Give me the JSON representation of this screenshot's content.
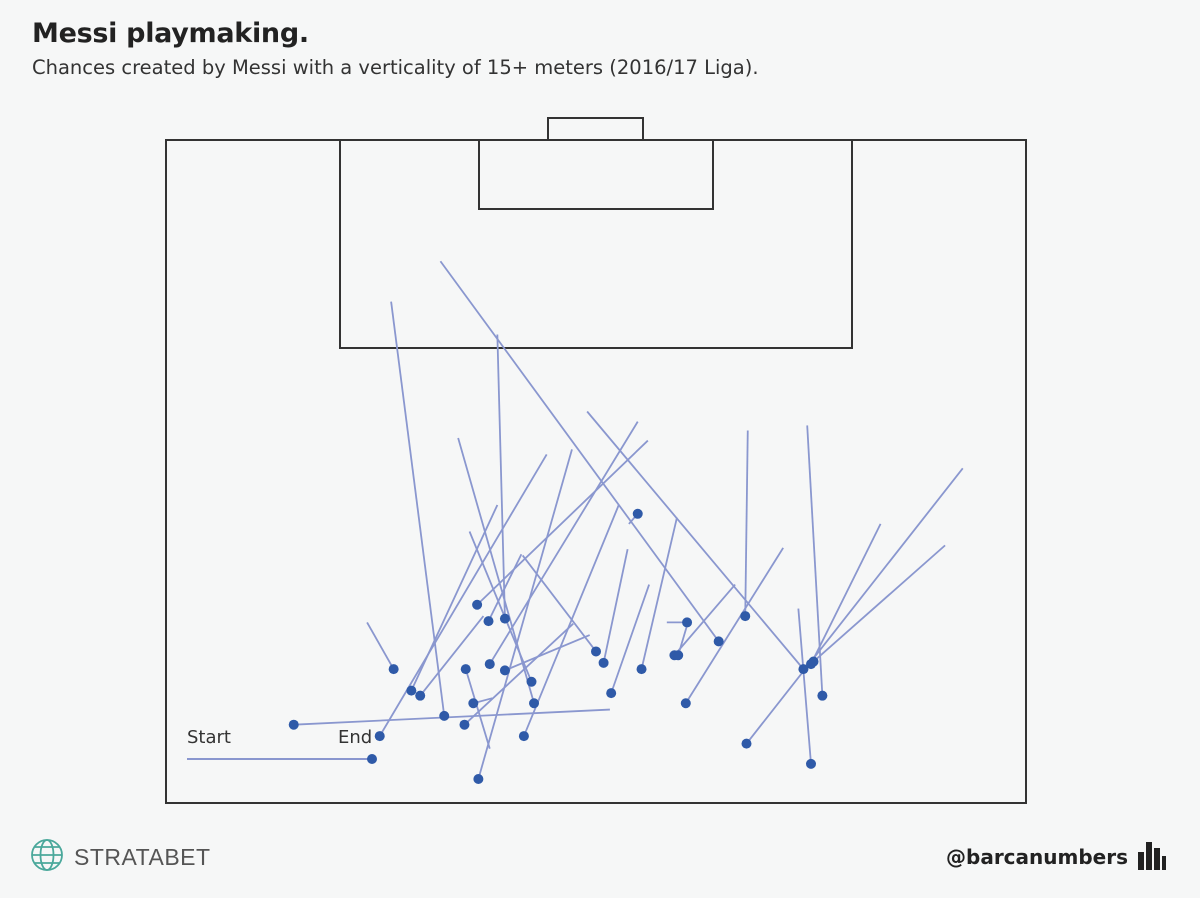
{
  "title": "Messi playmaking.",
  "subtitle": "Chances created by Messi with a verticality of 15+ meters (2016/17 Liga).",
  "legend": {
    "start_label": "Start",
    "end_label": "End"
  },
  "branding": {
    "logo_text": "STRATABET",
    "logo_icon": "globe-icon",
    "handle": "@barcanumbers",
    "handle_icon": "bar-chart-icon"
  },
  "colors": {
    "pass_line": "#8a97cf",
    "pass_end": "#2f5aa8",
    "pitch_line": "#333333",
    "logo": "#4aa89b"
  },
  "chart_data": {
    "type": "pass_map",
    "units": "meters",
    "pitch": {
      "width_m": 68,
      "visible_length_m": 52.5,
      "attacking_direction": "up"
    },
    "passes": [
      {
        "start": [
          32.1,
          24.5
        ],
        "end": [
          24.7,
          50.6
        ]
      },
      {
        "start": [
          26.2,
          28.9
        ],
        "end": [
          19.4,
          43.6
        ]
      },
      {
        "start": [
          35.1,
          45.1
        ],
        "end": [
          10.1,
          46.3
        ]
      },
      {
        "start": [
          30.1,
          24.9
        ],
        "end": [
          16.9,
          47.2
        ]
      },
      {
        "start": [
          15.9,
          38.2
        ],
        "end": [
          18.0,
          41.9
        ]
      },
      {
        "start": [
          36.6,
          30.4
        ],
        "end": [
          37.3,
          29.6
        ]
      },
      {
        "start": [
          28.1,
          32.8
        ],
        "end": [
          25.5,
          38.1
        ]
      },
      {
        "start": [
          25.8,
          44.2
        ],
        "end": [
          24.3,
          44.6
        ]
      },
      {
        "start": [
          28.2,
          32.9
        ],
        "end": [
          34.0,
          40.5
        ]
      },
      {
        "start": [
          37.3,
          22.3
        ],
        "end": [
          25.6,
          41.5
        ]
      },
      {
        "start": [
          35.8,
          28.9
        ],
        "end": [
          28.3,
          47.2
        ]
      },
      {
        "start": [
          17.8,
          12.8
        ],
        "end": [
          22.0,
          45.6
        ]
      },
      {
        "start": [
          32.2,
          38.3
        ],
        "end": [
          23.6,
          46.3
        ]
      },
      {
        "start": [
          36.5,
          32.4
        ],
        "end": [
          34.6,
          41.4
        ]
      },
      {
        "start": [
          48.8,
          32.3
        ],
        "end": [
          41.1,
          44.6
        ]
      },
      {
        "start": [
          63.0,
          26.0
        ],
        "end": [
          45.9,
          47.8
        ]
      },
      {
        "start": [
          21.7,
          9.6
        ],
        "end": [
          43.7,
          39.7
        ]
      },
      {
        "start": [
          26.2,
          15.4
        ],
        "end": [
          26.8,
          37.9
        ]
      },
      {
        "start": [
          46.0,
          23.0
        ],
        "end": [
          45.8,
          37.7
        ]
      },
      {
        "start": [
          24.0,
          31.0
        ],
        "end": [
          28.9,
          42.9
        ]
      },
      {
        "start": [
          33.3,
          21.5
        ],
        "end": [
          50.4,
          41.9
        ]
      },
      {
        "start": [
          38.1,
          23.8
        ],
        "end": [
          24.6,
          36.8
        ]
      },
      {
        "start": [
          33.5,
          39.2
        ],
        "end": [
          26.8,
          42.0
        ]
      },
      {
        "start": [
          23.1,
          23.6
        ],
        "end": [
          29.1,
          44.6
        ]
      },
      {
        "start": [
          50.7,
          22.6
        ],
        "end": [
          51.9,
          44.0
        ]
      },
      {
        "start": [
          61.6,
          32.1
        ],
        "end": [
          51.2,
          41.3
        ]
      },
      {
        "start": [
          25.6,
          48.2
        ],
        "end": [
          23.7,
          41.9
        ]
      },
      {
        "start": [
          25.1,
          37.7
        ],
        "end": [
          20.1,
          44.0
        ]
      },
      {
        "start": [
          56.5,
          30.4
        ],
        "end": [
          51.0,
          41.5
        ]
      },
      {
        "start": [
          38.2,
          35.2
        ],
        "end": [
          35.2,
          43.8
        ]
      },
      {
        "start": [
          40.4,
          29.9
        ],
        "end": [
          37.6,
          41.9
        ]
      },
      {
        "start": [
          39.6,
          38.2
        ],
        "end": [
          41.2,
          38.2
        ]
      },
      {
        "start": [
          50.0,
          37.1
        ],
        "end": [
          51.0,
          49.4
        ]
      },
      {
        "start": [
          45.0,
          35.2
        ],
        "end": [
          40.2,
          40.8
        ]
      },
      {
        "start": [
          41.3,
          38.1
        ],
        "end": [
          40.5,
          40.8
        ]
      }
    ]
  }
}
